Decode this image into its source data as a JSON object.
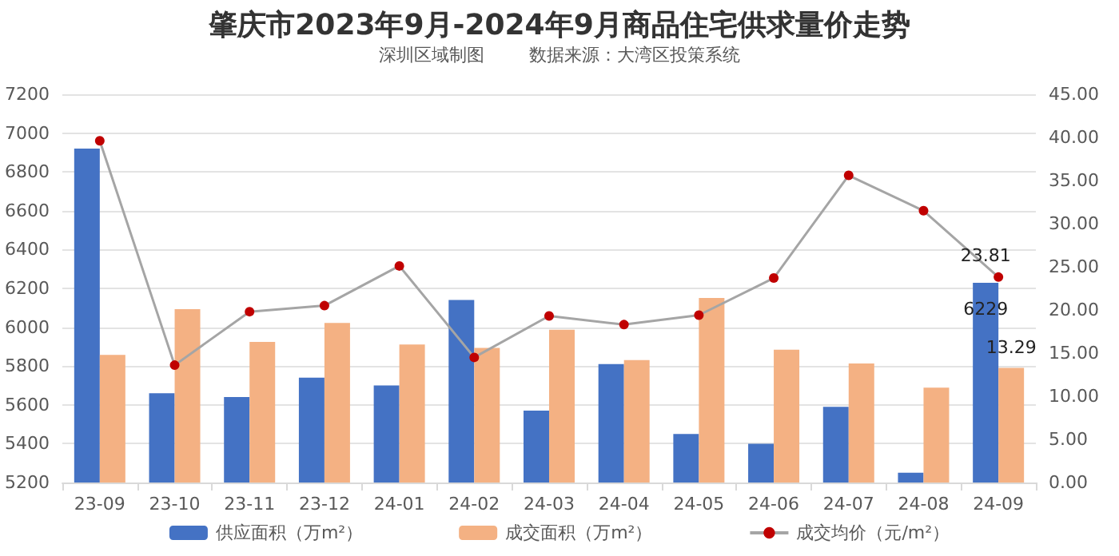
{
  "chart_data": {
    "type": "bar",
    "title": "肇庆市2023年9月-2024年9月商品住宅供求量价走势",
    "subtitle": "深圳区域制图        数据来源：大湾区投策系统",
    "categories": [
      "23-09",
      "23-10",
      "23-11",
      "23-12",
      "24-01",
      "24-02",
      "24-03",
      "24-04",
      "24-05",
      "24-06",
      "24-07",
      "24-08",
      "24-09"
    ],
    "series": [
      {
        "name": "供应面积（万m²）",
        "color": "#4472c4",
        "values": [
          6920,
          5660,
          5640,
          5740,
          5700,
          6140,
          5570,
          5810,
          5450,
          5400,
          5590,
          5250,
          6229
        ],
        "value_labels": [
          null,
          null,
          null,
          null,
          null,
          null,
          null,
          null,
          null,
          null,
          null,
          null,
          "6229"
        ]
      },
      {
        "name": "成交面积（万m²）",
        "axis": "y2",
        "color": "#f4b183",
        "values": [
          14.8,
          20.1,
          16.3,
          18.5,
          16.0,
          15.6,
          17.7,
          14.2,
          21.4,
          15.4,
          13.8,
          11.0,
          13.29
        ],
        "value_labels": [
          null,
          null,
          null,
          null,
          null,
          null,
          null,
          null,
          null,
          null,
          null,
          null,
          "13.29"
        ]
      },
      {
        "name": "成交均价（元/m²）",
        "type": "line",
        "axis": "y2",
        "color": "#a5a5a5",
        "marker": "circle",
        "values": [
          39.6,
          13.6,
          19.8,
          20.5,
          25.1,
          14.5,
          19.3,
          18.3,
          19.4,
          23.7,
          35.6,
          31.5,
          23.81
        ],
        "value_labels": [
          null,
          null,
          null,
          null,
          null,
          null,
          null,
          null,
          null,
          null,
          null,
          null,
          "23.81"
        ]
      }
    ],
    "ylim": [
      5200,
      7200
    ],
    "yticks": [
      5200,
      5400,
      5600,
      5800,
      6000,
      6200,
      6400,
      6600,
      6800,
      7000,
      7200
    ],
    "y2lim": [
      0,
      45
    ],
    "y2ticks": [
      {
        "value": 0,
        "label": "0.00"
      },
      {
        "value": 5,
        "label": "5.00"
      },
      {
        "value": 10,
        "label": "10.00"
      },
      {
        "value": 15,
        "label": "15.00"
      },
      {
        "value": 20,
        "label": "20.00"
      },
      {
        "value": 25,
        "label": "25.00"
      },
      {
        "value": 30,
        "label": "30.00"
      },
      {
        "value": 35,
        "label": "35.00"
      },
      {
        "value": 40,
        "label": "40.00"
      },
      {
        "value": 45,
        "label": "45.00"
      }
    ],
    "grid": "y",
    "legend": "bottom"
  }
}
